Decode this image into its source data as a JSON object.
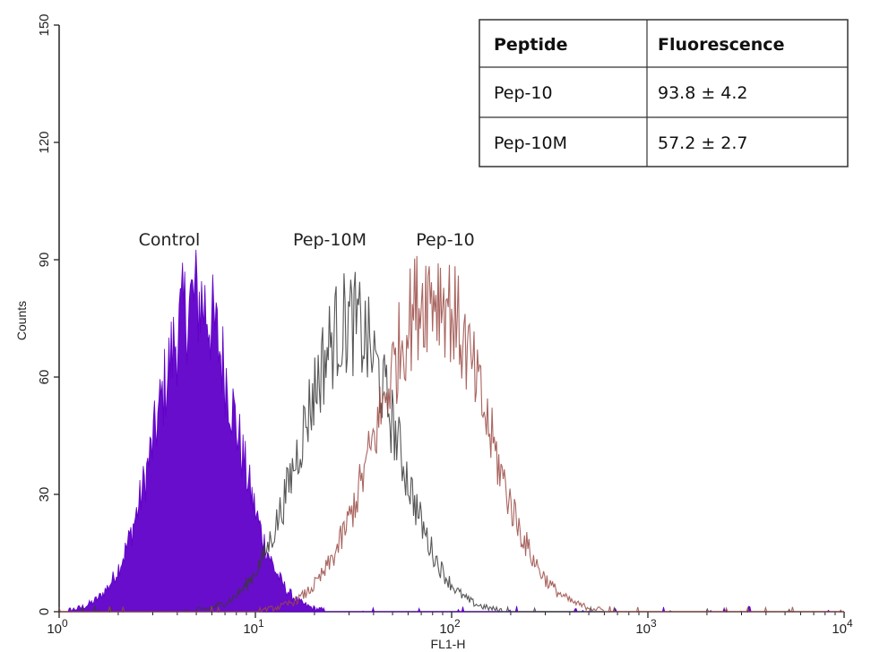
{
  "chart_data": {
    "type": "area",
    "xlabel": "FL1-H",
    "ylabel": "Counts",
    "xscale": "log",
    "xlim": [
      1,
      10000
    ],
    "ylim": [
      0,
      150
    ],
    "x_ticks": [
      {
        "base": "10",
        "exp": "0"
      },
      {
        "base": "10",
        "exp": "1"
      },
      {
        "base": "10",
        "exp": "2"
      },
      {
        "base": "10",
        "exp": "3"
      },
      {
        "base": "10",
        "exp": "4"
      }
    ],
    "y_ticks": [
      "0",
      "30",
      "60",
      "90",
      "120",
      "150"
    ],
    "series": [
      {
        "name": "Control",
        "color": "#6000c8",
        "filled": true,
        "peak_x": 5.0,
        "peak_y": 80,
        "log_sigma": 0.2
      },
      {
        "name": "Pep-10M",
        "color": "#3a3a3a",
        "filled": false,
        "peak_x": 30,
        "peak_y": 74,
        "log_sigma": 0.24
      },
      {
        "name": "Pep-10",
        "color": "#9a4a44",
        "filled": false,
        "peak_x": 80,
        "peak_y": 82,
        "log_sigma": 0.27
      }
    ],
    "annotations": [
      "Control",
      "Pep-10M",
      "Pep-10"
    ],
    "table": {
      "headers": [
        "Peptide",
        "Fluorescence"
      ],
      "rows": [
        [
          "Pep-10",
          "93.8 ± 4.2"
        ],
        [
          "Pep-10M",
          "57.2 ± 2.7"
        ]
      ]
    },
    "grid": false
  }
}
